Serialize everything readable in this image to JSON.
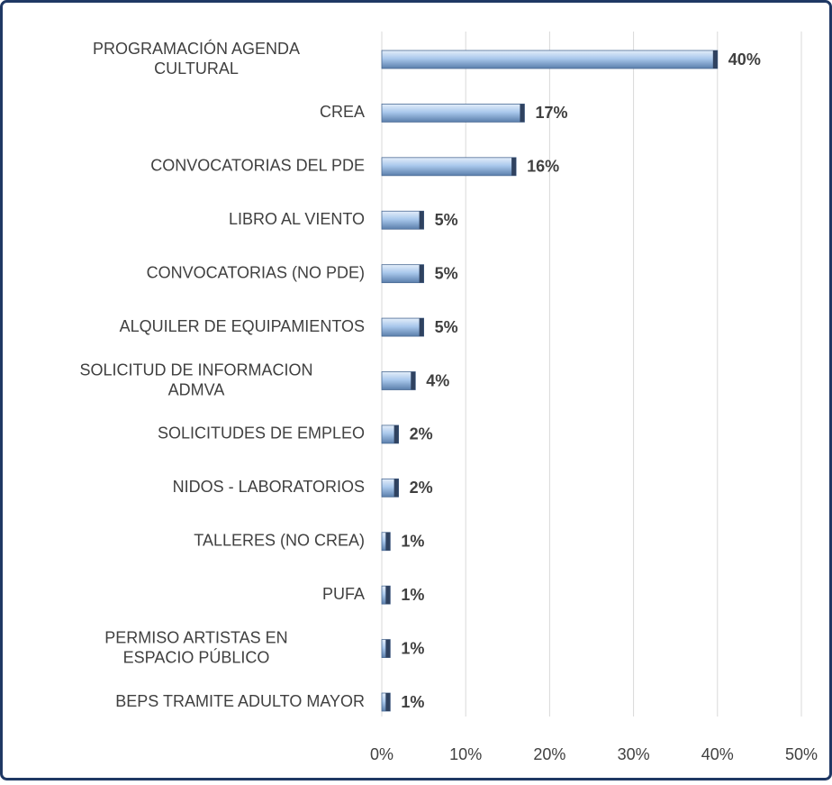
{
  "chart_data": {
    "type": "hbar",
    "categories": [
      "PROGRAMACIÓN AGENDA CULTURAL",
      "CREA",
      "CONVOCATORIAS DEL PDE",
      "LIBRO AL VIENTO",
      "CONVOCATORIAS (NO PDE)",
      "ALQUILER DE EQUIPAMIENTOS",
      "SOLICITUD DE INFORMACION ADMVA",
      "SOLICITUDES DE EMPLEO",
      "NIDOS - LABORATORIOS",
      "TALLERES (NO CREA)",
      "PUFA",
      "PERMISO ARTISTAS EN ESPACIO PÚBLICO",
      "BEPS TRAMITE ADULTO MAYOR"
    ],
    "values": [
      40,
      17,
      16,
      5,
      5,
      5,
      4,
      2,
      2,
      1,
      1,
      1,
      1
    ],
    "value_labels": [
      "40%",
      "17%",
      "16%",
      "5%",
      "5%",
      "5%",
      "4%",
      "2%",
      "2%",
      "1%",
      "1%",
      "1%",
      "1%"
    ],
    "xlim": [
      0,
      50
    ],
    "xticks": [
      {
        "value": 0,
        "label": "0%"
      },
      {
        "value": 10,
        "label": "10%"
      },
      {
        "value": 20,
        "label": "20%"
      },
      {
        "value": 30,
        "label": "30%"
      },
      {
        "value": 40,
        "label": "40%"
      },
      {
        "value": 50,
        "label": "50%"
      }
    ],
    "grid": true,
    "color": "#8fb4e0"
  }
}
